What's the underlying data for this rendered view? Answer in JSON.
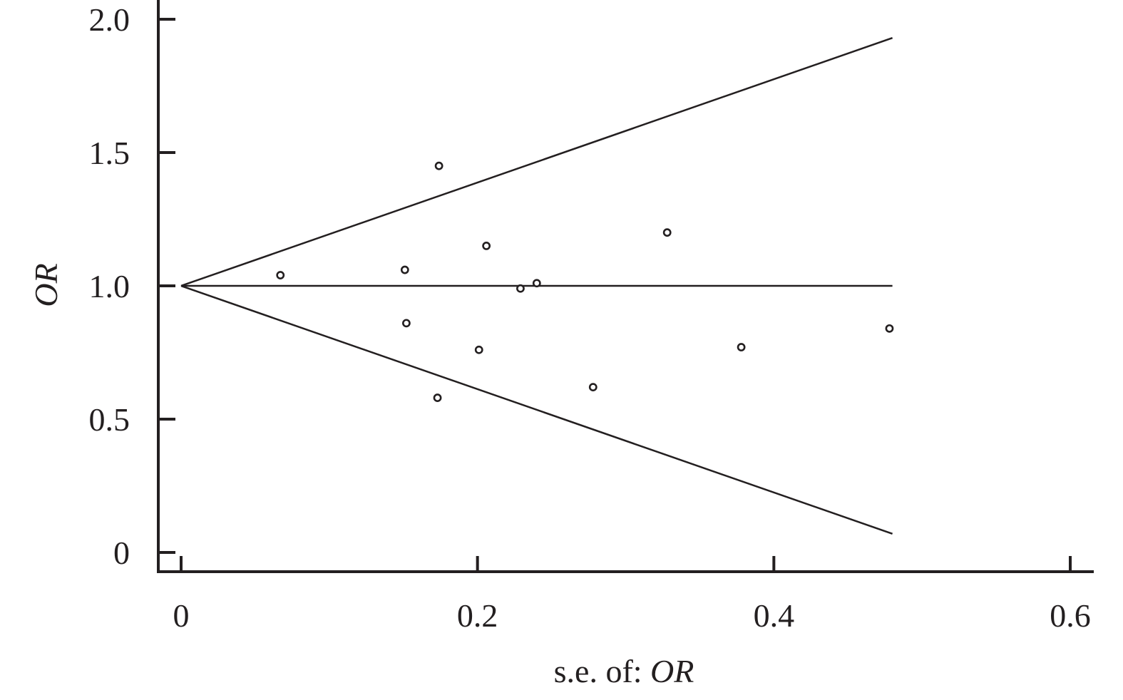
{
  "chart_data": {
    "type": "scatter",
    "title": "",
    "xlabel_prefix": "s.e. of: ",
    "xlabel_var": "OR",
    "ylabel": "OR",
    "xlim": [
      0,
      0.6
    ],
    "ylim": [
      0,
      2.0
    ],
    "x_ticks": [
      {
        "value": 0,
        "label": "0"
      },
      {
        "value": 0.2,
        "label": "0.2"
      },
      {
        "value": 0.4,
        "label": "0.4"
      },
      {
        "value": 0.6,
        "label": "0.6"
      }
    ],
    "y_ticks": [
      {
        "value": 0,
        "label": "0"
      },
      {
        "value": 0.5,
        "label": "0.5"
      },
      {
        "value": 1.0,
        "label": "1.0"
      },
      {
        "value": 1.5,
        "label": "1.5"
      },
      {
        "value": 2.0,
        "label": "2.0"
      }
    ],
    "grid": false,
    "reference_line": {
      "y": 1.0,
      "x": [
        0,
        0.48
      ]
    },
    "funnel_upper": [
      [
        0,
        1.0
      ],
      [
        0.48,
        1.93
      ]
    ],
    "funnel_lower": [
      [
        0,
        1.0
      ],
      [
        0.48,
        0.07
      ]
    ],
    "points": [
      {
        "x": 0.067,
        "y": 1.04
      },
      {
        "x": 0.151,
        "y": 1.06
      },
      {
        "x": 0.152,
        "y": 0.86
      },
      {
        "x": 0.173,
        "y": 0.58
      },
      {
        "x": 0.174,
        "y": 1.45
      },
      {
        "x": 0.201,
        "y": 0.76
      },
      {
        "x": 0.206,
        "y": 1.15
      },
      {
        "x": 0.229,
        "y": 0.99
      },
      {
        "x": 0.24,
        "y": 1.01
      },
      {
        "x": 0.278,
        "y": 0.62
      },
      {
        "x": 0.328,
        "y": 1.2
      },
      {
        "x": 0.378,
        "y": 0.77
      },
      {
        "x": 0.478,
        "y": 0.84
      }
    ],
    "colors": {
      "ink": "#231f20",
      "background": "#ffffff"
    }
  }
}
